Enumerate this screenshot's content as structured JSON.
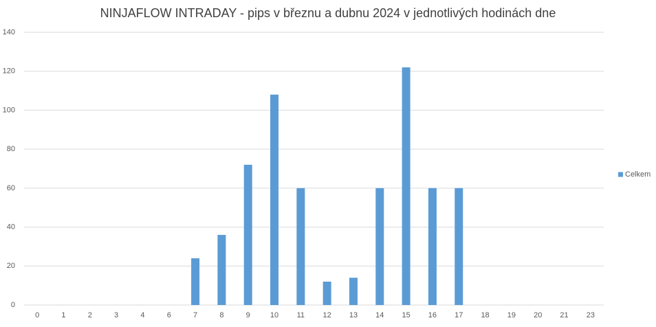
{
  "chart_data": {
    "type": "bar",
    "title": "NINJAFLOW INTRADAY - pips v březnu a dubnu 2024 v jednotlivých hodinách dne",
    "categories": [
      "0",
      "1",
      "2",
      "3",
      "4",
      "6",
      "7",
      "8",
      "9",
      "10",
      "11",
      "12",
      "13",
      "14",
      "15",
      "16",
      "17",
      "18",
      "19",
      "20",
      "21",
      "23"
    ],
    "series": [
      {
        "name": "Celkem",
        "color": "#5b9bd5",
        "values": [
          0,
          0,
          0,
          0,
          0,
          0,
          24,
          36,
          72,
          108,
          60,
          12,
          14,
          60,
          122,
          60,
          60,
          0,
          0,
          0,
          0,
          0
        ]
      }
    ],
    "ylim": [
      0,
      140
    ],
    "yticks": [
      0,
      20,
      40,
      60,
      80,
      100,
      120,
      140
    ],
    "grid": true,
    "legend": "right"
  }
}
